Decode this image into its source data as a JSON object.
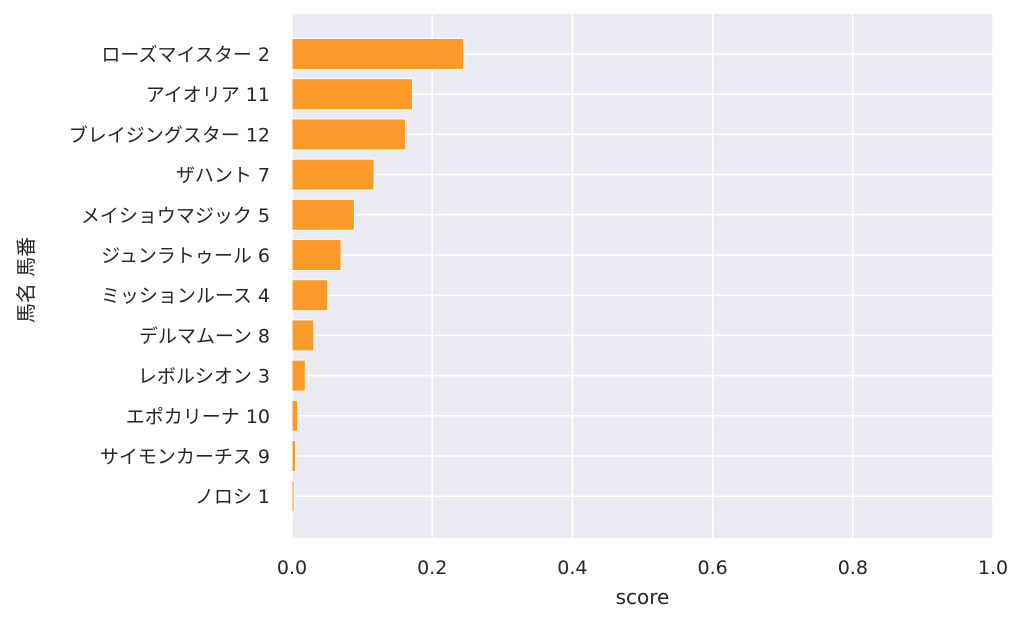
{
  "chart_data": {
    "type": "bar",
    "orientation": "horizontal",
    "categories": [
      "ローズマイスター 2",
      "アイオリア 11",
      "ブレイジングスター 12",
      "ザハント 7",
      "メイショウマジック 5",
      "ジュンラトゥール 6",
      "ミッションルース 4",
      "デルマムーン 8",
      "レボルシオン 3",
      "エポカリーナ 10",
      "サイモンカーチス 9",
      "ノロシ 1"
    ],
    "values": [
      0.245,
      0.172,
      0.162,
      0.117,
      0.089,
      0.07,
      0.051,
      0.031,
      0.019,
      0.008,
      0.005,
      0.003
    ],
    "xlabel": "score",
    "ylabel": "馬名 馬番",
    "xlim": [
      0.0,
      1.0
    ],
    "xticks": [
      "0.0",
      "0.2",
      "0.4",
      "0.6",
      "0.8",
      "1.0"
    ],
    "grid": true,
    "colors": {
      "bar": "#fb9a29",
      "bar_edge": "#ffffff",
      "plot_background": "#eaeaf2",
      "grid": "#ffffff",
      "text": "#262626"
    }
  }
}
